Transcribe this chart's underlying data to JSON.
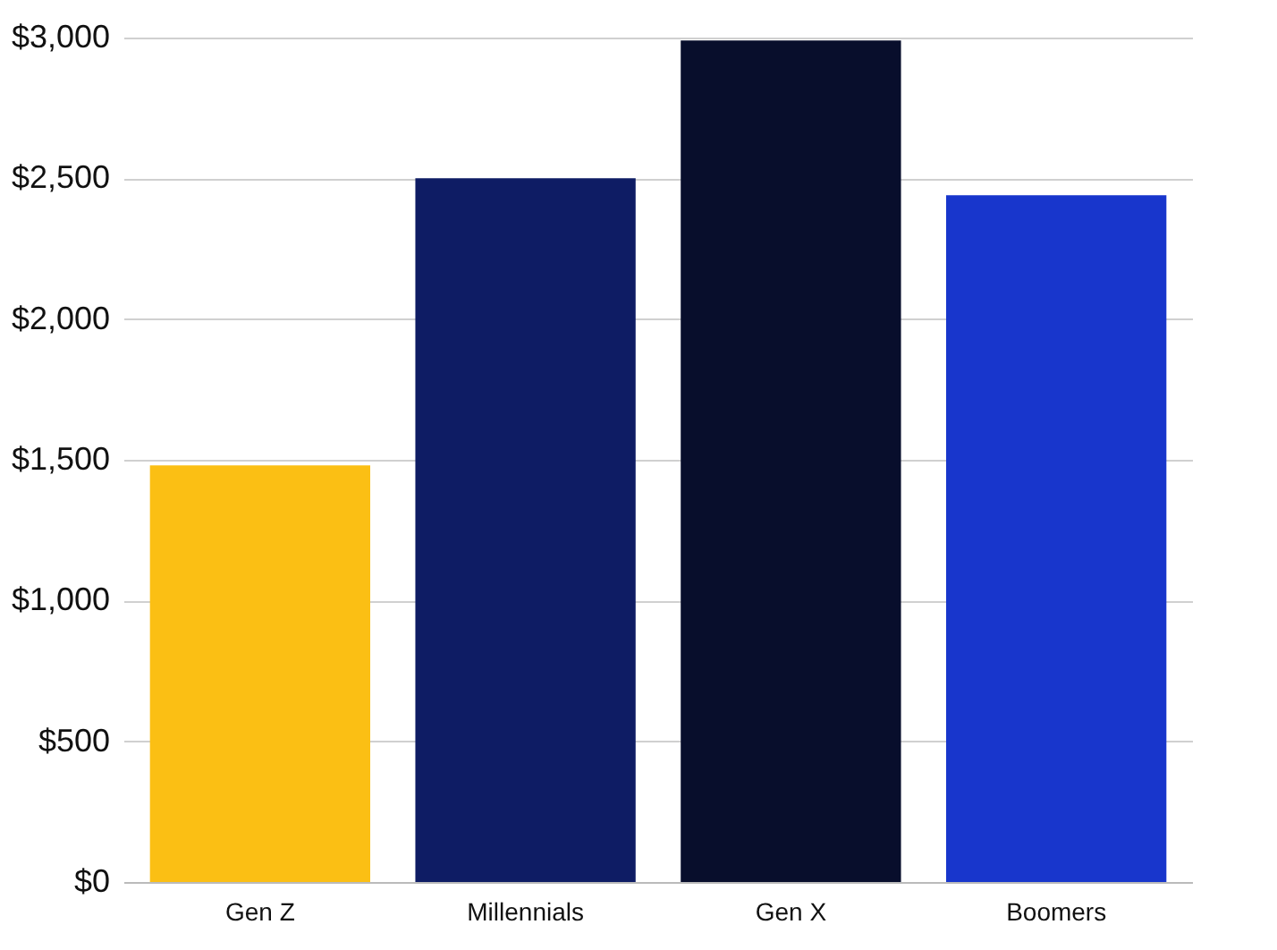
{
  "chart_data": {
    "type": "bar",
    "categories": [
      "Gen Z",
      "Millennials",
      "Gen X",
      "Boomers"
    ],
    "values": [
      1480,
      2500,
      2990,
      2440
    ],
    "colors": [
      "#fbbf14",
      "#0e1c64",
      "#080e2c",
      "#1836cc"
    ],
    "ylim": [
      0,
      3000
    ],
    "yticks": [
      {
        "value": 0,
        "label": "$0"
      },
      {
        "value": 500,
        "label": "$500"
      },
      {
        "value": 1000,
        "label": "$1,000"
      },
      {
        "value": 1500,
        "label": "$1,500"
      },
      {
        "value": 2000,
        "label": "$2,000"
      },
      {
        "value": 2500,
        "label": "$2,500"
      },
      {
        "value": 3000,
        "label": "$3,000"
      }
    ],
    "grid": "y"
  }
}
